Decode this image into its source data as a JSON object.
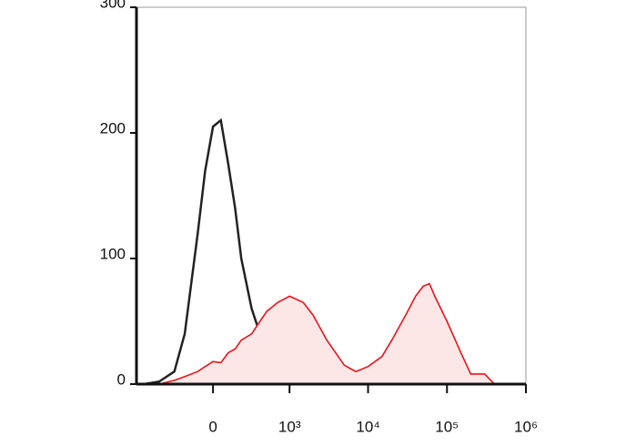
{
  "chart_data": {
    "type": "line",
    "x": [
      -800,
      -500,
      -300,
      -200,
      -100,
      -50,
      0,
      50,
      100,
      150,
      200,
      300,
      400,
      500,
      700,
      1000,
      1500,
      2000,
      3000,
      5000,
      7000,
      10000,
      15000,
      20000,
      30000,
      40000,
      50000,
      60000,
      70000,
      100000,
      150000,
      200000,
      300000,
      400000
    ],
    "series": [
      {
        "color": "#222222",
        "values": [
          0,
          2,
          10,
          40,
          120,
          170,
          205,
          210,
          175,
          140,
          100,
          60,
          40,
          25,
          8,
          1,
          0,
          0,
          null,
          null,
          null,
          null,
          null,
          null,
          null,
          null,
          null,
          null,
          null,
          null,
          null,
          null,
          null,
          null
        ]
      },
      {
        "color": "#e8141b",
        "fill": "#fde6e6",
        "values": [
          null,
          0,
          3,
          6,
          10,
          14,
          18,
          17,
          25,
          28,
          35,
          40,
          50,
          58,
          65,
          70,
          65,
          55,
          35,
          15,
          10,
          14,
          22,
          35,
          55,
          70,
          78,
          80,
          70,
          50,
          25,
          8,
          8,
          0
        ]
      }
    ],
    "xscale": "biexponential",
    "xlim": [
      -1000,
      1000000
    ],
    "xticks": [
      0,
      {
        "value": 1000,
        "label": "10³"
      },
      {
        "value": 10000,
        "label": "10⁴"
      },
      {
        "value": 100000,
        "label": "10⁵"
      },
      {
        "value": 1000000,
        "label": "10⁶"
      }
    ],
    "ylim": [
      0,
      300
    ],
    "yticks": [
      0,
      100,
      200,
      300
    ]
  }
}
